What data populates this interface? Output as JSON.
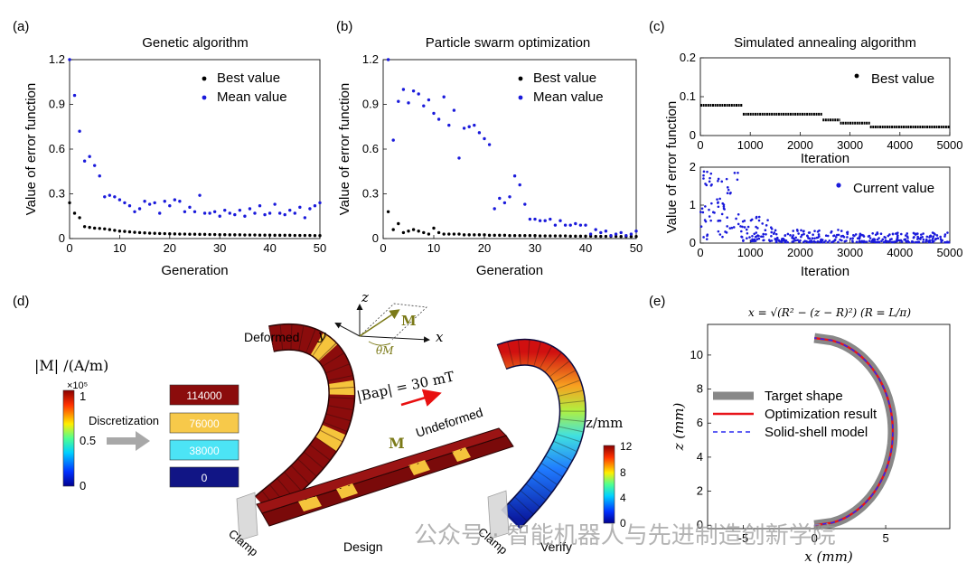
{
  "panels": {
    "a": {
      "label": "(a)",
      "title": "Genetic algorithm"
    },
    "b": {
      "label": "(b)",
      "title": "Particle swarm optimization"
    },
    "c": {
      "label": "(c)",
      "title": "Simulated annealing algorithm"
    },
    "d": {
      "label": "(d)"
    },
    "e": {
      "label": "(e)"
    }
  },
  "chart_data": [
    {
      "type": "scatter",
      "panel": "a",
      "title": "Genetic algorithm",
      "xlabel": "Generation",
      "ylabel": "Value of error function",
      "xlim": [
        0,
        50
      ],
      "ylim": [
        0,
        1.2
      ],
      "xticks": [
        "0",
        "10",
        "20",
        "30",
        "40",
        "50"
      ],
      "yticks": [
        "0",
        "0.3",
        "0.6",
        "0.9",
        "1.2"
      ],
      "legend_position": "top-right",
      "series": [
        {
          "name": "Best value",
          "color": "#000000",
          "x": [
            0,
            1,
            2,
            3,
            4,
            5,
            6,
            7,
            8,
            9,
            10,
            11,
            12,
            13,
            14,
            15,
            16,
            17,
            18,
            19,
            20,
            21,
            22,
            23,
            24,
            25,
            26,
            27,
            28,
            29,
            30,
            31,
            32,
            33,
            34,
            35,
            36,
            37,
            38,
            39,
            40,
            41,
            42,
            43,
            44,
            45,
            46,
            47,
            48,
            49,
            50
          ],
          "y": [
            0.24,
            0.17,
            0.14,
            0.08,
            0.075,
            0.07,
            0.068,
            0.065,
            0.06,
            0.055,
            0.05,
            0.048,
            0.045,
            0.042,
            0.04,
            0.038,
            0.036,
            0.035,
            0.034,
            0.033,
            0.032,
            0.031,
            0.03,
            0.03,
            0.029,
            0.029,
            0.028,
            0.028,
            0.027,
            0.027,
            0.026,
            0.026,
            0.025,
            0.025,
            0.025,
            0.024,
            0.024,
            0.024,
            0.023,
            0.023,
            0.023,
            0.022,
            0.022,
            0.022,
            0.022,
            0.021,
            0.021,
            0.021,
            0.021,
            0.02,
            0.02
          ]
        },
        {
          "name": "Mean value",
          "color": "#1a1adb",
          "x": [
            0,
            1,
            2,
            3,
            4,
            5,
            6,
            7,
            8,
            9,
            10,
            11,
            12,
            13,
            14,
            15,
            16,
            17,
            18,
            19,
            20,
            21,
            22,
            23,
            24,
            25,
            26,
            27,
            28,
            29,
            30,
            31,
            32,
            33,
            34,
            35,
            36,
            37,
            38,
            39,
            40,
            41,
            42,
            43,
            44,
            45,
            46,
            47,
            48,
            49,
            50
          ],
          "y": [
            1.2,
            0.96,
            0.72,
            0.52,
            0.55,
            0.49,
            0.42,
            0.28,
            0.29,
            0.28,
            0.26,
            0.24,
            0.22,
            0.18,
            0.2,
            0.25,
            0.23,
            0.24,
            0.17,
            0.25,
            0.22,
            0.26,
            0.25,
            0.18,
            0.21,
            0.18,
            0.29,
            0.17,
            0.17,
            0.18,
            0.15,
            0.19,
            0.17,
            0.16,
            0.19,
            0.15,
            0.2,
            0.17,
            0.22,
            0.16,
            0.17,
            0.23,
            0.17,
            0.16,
            0.19,
            0.17,
            0.21,
            0.14,
            0.2,
            0.22,
            0.24
          ]
        }
      ]
    },
    {
      "type": "scatter",
      "panel": "b",
      "title": "Particle swarm optimization",
      "xlabel": "Generation",
      "ylabel": "Value of error function",
      "xlim": [
        0,
        50
      ],
      "ylim": [
        0,
        1.2
      ],
      "xticks": [
        "0",
        "10",
        "20",
        "30",
        "40",
        "50"
      ],
      "yticks": [
        "0",
        "0.3",
        "0.6",
        "0.9",
        "1.2"
      ],
      "legend_position": "top-right",
      "series": [
        {
          "name": "Best value",
          "color": "#000000",
          "x": [
            1,
            2,
            3,
            4,
            5,
            6,
            7,
            8,
            9,
            10,
            11,
            12,
            13,
            14,
            15,
            16,
            17,
            18,
            19,
            20,
            21,
            22,
            23,
            24,
            25,
            26,
            27,
            28,
            29,
            30,
            31,
            32,
            33,
            34,
            35,
            36,
            37,
            38,
            39,
            40,
            41,
            42,
            43,
            44,
            45,
            46,
            47,
            48,
            49,
            50
          ],
          "y": [
            0.18,
            0.06,
            0.1,
            0.04,
            0.05,
            0.06,
            0.05,
            0.04,
            0.03,
            0.07,
            0.04,
            0.03,
            0.03,
            0.03,
            0.03,
            0.025,
            0.025,
            0.025,
            0.025,
            0.025,
            0.022,
            0.022,
            0.022,
            0.022,
            0.02,
            0.02,
            0.02,
            0.02,
            0.02,
            0.02,
            0.018,
            0.018,
            0.018,
            0.018,
            0.018,
            0.018,
            0.016,
            0.016,
            0.016,
            0.016,
            0.016,
            0.015,
            0.015,
            0.015,
            0.015,
            0.015,
            0.014,
            0.014,
            0.014,
            0.014
          ]
        },
        {
          "name": "Mean value",
          "color": "#1a1adb",
          "x": [
            1,
            2,
            3,
            4,
            5,
            6,
            7,
            8,
            9,
            10,
            11,
            12,
            13,
            14,
            15,
            16,
            17,
            18,
            19,
            20,
            21,
            22,
            23,
            24,
            25,
            26,
            27,
            28,
            29,
            30,
            31,
            32,
            33,
            34,
            35,
            36,
            37,
            38,
            39,
            40,
            41,
            42,
            43,
            44,
            45,
            46,
            47,
            48,
            49,
            50
          ],
          "y": [
            1.2,
            0.66,
            0.92,
            1.0,
            0.91,
            0.99,
            0.97,
            0.89,
            0.93,
            0.84,
            0.8,
            0.95,
            0.76,
            0.86,
            0.54,
            0.74,
            0.75,
            0.76,
            0.71,
            0.67,
            0.63,
            0.2,
            0.27,
            0.24,
            0.28,
            0.42,
            0.36,
            0.23,
            0.13,
            0.13,
            0.12,
            0.12,
            0.13,
            0.09,
            0.12,
            0.09,
            0.09,
            0.1,
            0.09,
            0.09,
            0.03,
            0.06,
            0.04,
            0.05,
            0.02,
            0.03,
            0.04,
            0.02,
            0.03,
            0.05
          ]
        }
      ]
    },
    {
      "type": "scatter",
      "panel": "c-top",
      "title": "Simulated annealing algorithm",
      "xlabel": "Iteration",
      "ylabel": "Value of error function",
      "xlim": [
        0,
        5000
      ],
      "ylim": [
        0,
        0.2
      ],
      "xticks": [
        "0",
        "1000",
        "2000",
        "3000",
        "4000",
        "5000"
      ],
      "yticks": [
        "0",
        "0.1",
        "0.2"
      ],
      "legend_position": "top-right",
      "series": [
        {
          "name": "Best value",
          "color": "#000000",
          "steps": [
            [
              0,
              850,
              0.078
            ],
            [
              850,
              2450,
              0.055
            ],
            [
              2450,
              2800,
              0.04
            ],
            [
              2800,
              3400,
              0.032
            ],
            [
              3400,
              5000,
              0.022
            ]
          ]
        }
      ]
    },
    {
      "type": "scatter",
      "panel": "c-bottom",
      "xlabel": "Iteration",
      "xlim": [
        0,
        5000
      ],
      "ylim": [
        0,
        2
      ],
      "xticks": [
        "0",
        "1000",
        "2000",
        "3000",
        "4000",
        "5000"
      ],
      "yticks": [
        "0",
        "1",
        "2"
      ],
      "legend_position": "top-right",
      "series": [
        {
          "name": "Current value",
          "color": "#1a1adb",
          "density": [
            [
              0,
              800,
              0.1,
              1.9
            ],
            [
              800,
              1500,
              0.05,
              0.7
            ],
            [
              1500,
              3000,
              0.02,
              0.35
            ],
            [
              3000,
              5000,
              0.02,
              0.28
            ]
          ]
        }
      ]
    },
    {
      "type": "line",
      "panel": "e",
      "equation": "x = √(R² − (z − R)²)  (R = L/π)",
      "xlabel": "x (mm)",
      "ylabel": "z (mm)",
      "xlim": [
        -7.5,
        9.5
      ],
      "ylim": [
        -0.2,
        11.8
      ],
      "xticks": [
        "-5",
        "0",
        "5"
      ],
      "yticks": [
        "0",
        "2",
        "4",
        "6",
        "8",
        "10"
      ],
      "R": 5.5,
      "legend_position": "center-left",
      "series": [
        {
          "name": "Target shape",
          "color": "#888888",
          "style": "thick"
        },
        {
          "name": "Optimization result",
          "color": "#e8141a",
          "style": "solid"
        },
        {
          "name": "Solid-shell model",
          "color": "#2a2af0",
          "style": "dashed"
        }
      ]
    }
  ],
  "panel_d": {
    "axis_y": "y",
    "axis_z": "z",
    "axis_x": "x",
    "moment": "M",
    "theta": "θM",
    "field": "|Bap| = 30 mT",
    "deformed": "Deformed",
    "undeformed": "Undeformed",
    "m_label": "M",
    "colorbar_label": "|M| /(A/m)",
    "colorbar_exp": "×10⁵",
    "colorbar_ticks": [
      "1",
      "0.5",
      "0"
    ],
    "discretization": "Discretization",
    "levels": [
      {
        "value": "114000",
        "color": "#8b0c0c"
      },
      {
        "value": "76000",
        "color": "#f7c94a"
      },
      {
        "value": "38000",
        "color": "#4ce4f5"
      },
      {
        "value": "0",
        "color": "#111585"
      }
    ],
    "zbar_label": "z/mm",
    "zbar_ticks": [
      "12",
      "8",
      "4",
      "0"
    ],
    "clamp1": "Clamp",
    "clamp2": "Clamp",
    "design": "Design",
    "verify": "Verify"
  },
  "watermark": "公众号 · 智能机器人与先进制造创新学院"
}
